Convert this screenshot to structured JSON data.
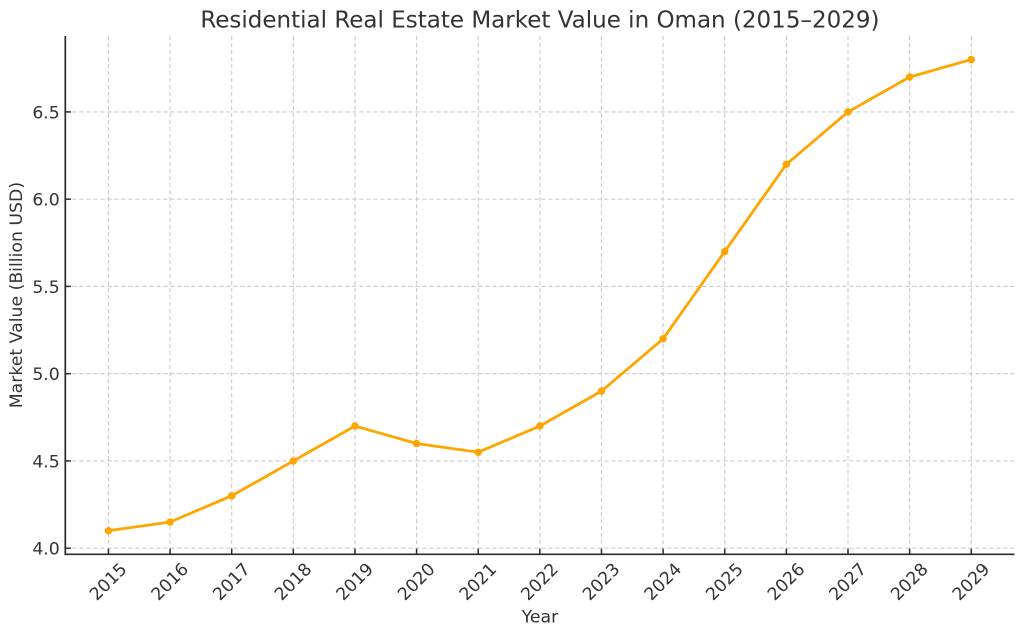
{
  "chart_data": {
    "type": "line",
    "title": "Residential Real Estate Market Value in Oman (2015–2029)",
    "xlabel": "Year",
    "ylabel": "Market Value (Billion USD)",
    "categories": [
      "2015",
      "2016",
      "2017",
      "2018",
      "2019",
      "2020",
      "2021",
      "2022",
      "2023",
      "2024",
      "2025",
      "2026",
      "2027",
      "2028",
      "2029"
    ],
    "x": [
      2015,
      2016,
      2017,
      2018,
      2019,
      2020,
      2021,
      2022,
      2023,
      2024,
      2025,
      2026,
      2027,
      2028,
      2029
    ],
    "series": [
      {
        "name": "Market Value (Billion USD)",
        "values": [
          4.1,
          4.15,
          4.3,
          4.5,
          4.7,
          4.6,
          4.55,
          4.7,
          4.9,
          5.2,
          5.7,
          6.2,
          6.5,
          6.7,
          6.8
        ]
      }
    ],
    "xlim": [
      2014.3,
      2029.7
    ],
    "ylim": [
      3.965,
      6.935
    ],
    "yticks": [
      4.0,
      4.5,
      5.0,
      5.5,
      6.0,
      6.5
    ],
    "ytick_labels": [
      "4.0",
      "4.5",
      "5.0",
      "5.5",
      "6.0",
      "6.5"
    ],
    "xtick_rotation_deg": 45,
    "grid": "both, dashed",
    "legend": "none",
    "marker": "circle",
    "style": {
      "line_color": "#FFA500",
      "marker_color": "#FFA500",
      "grid_color": "#cbcbcb",
      "spine_color": "#2b2b2b",
      "tick_color": "#2b2b2b",
      "text_color": "#333333",
      "background_color": "#ffffff"
    }
  }
}
